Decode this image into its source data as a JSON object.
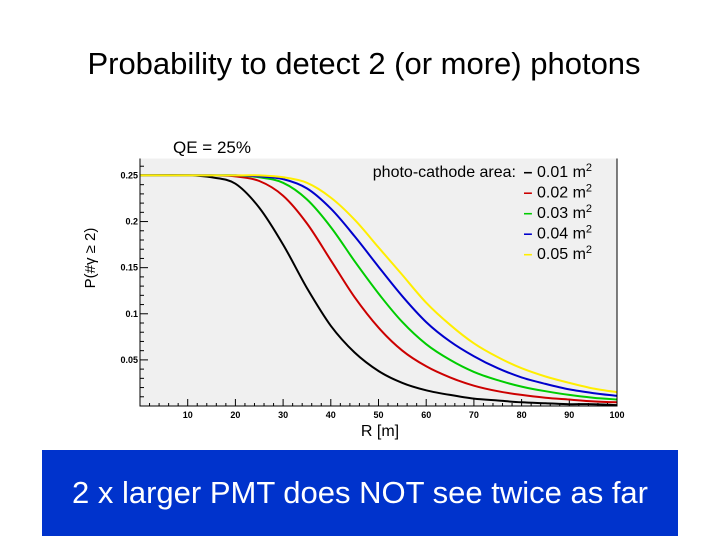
{
  "slide": {
    "title": "Probability to detect 2 (or more) photons",
    "banner": "2 x larger PMT does NOT see twice as far"
  },
  "chart_data": {
    "type": "line",
    "title": "QE = 25%",
    "xlabel": "R [m]",
    "ylabel": "P(#γ ≥ 2)",
    "xlim": [
      0,
      100
    ],
    "ylim": [
      0,
      0.27
    ],
    "x_ticks": [
      10,
      20,
      30,
      40,
      50,
      60,
      70,
      80,
      90,
      100
    ],
    "x_tick_labels": [
      "10",
      "20",
      "30",
      "40",
      "50",
      "60",
      "70",
      "80",
      "90",
      "100"
    ],
    "y_ticks": [
      0.05,
      0.1,
      0.15,
      0.2,
      0.25
    ],
    "y_tick_labels": [
      "0.05",
      "0.1",
      "0.15",
      "0.2",
      "0.25"
    ],
    "legend_title": "photo-cathode area:",
    "legend_unit": "m",
    "legend_unit_power": "2",
    "legend_marker": "–",
    "legend_position": "top-right",
    "x": [
      0,
      10,
      15,
      20,
      25,
      30,
      35,
      40,
      45,
      50,
      55,
      60,
      65,
      70,
      75,
      80,
      85,
      90,
      95,
      100
    ],
    "series": [
      {
        "name": "0.01",
        "color": "#000000",
        "values": [
          0.25,
          0.25,
          0.248,
          0.241,
          0.215,
          0.175,
          0.128,
          0.087,
          0.058,
          0.038,
          0.025,
          0.017,
          0.012,
          0.008,
          0.006,
          0.004,
          0.003,
          0.002,
          0.002,
          0.001
        ]
      },
      {
        "name": "0.02",
        "color": "#cc0000",
        "values": [
          0.25,
          0.25,
          0.25,
          0.249,
          0.244,
          0.228,
          0.198,
          0.158,
          0.118,
          0.085,
          0.06,
          0.043,
          0.031,
          0.022,
          0.016,
          0.012,
          0.009,
          0.007,
          0.005,
          0.004
        ]
      },
      {
        "name": "0.03",
        "color": "#00cc00",
        "values": [
          0.25,
          0.25,
          0.25,
          0.25,
          0.248,
          0.242,
          0.224,
          0.194,
          0.157,
          0.122,
          0.091,
          0.067,
          0.05,
          0.037,
          0.028,
          0.021,
          0.016,
          0.012,
          0.009,
          0.007
        ]
      },
      {
        "name": "0.04",
        "color": "#0000cc",
        "values": [
          0.25,
          0.25,
          0.25,
          0.25,
          0.249,
          0.246,
          0.236,
          0.214,
          0.184,
          0.151,
          0.119,
          0.091,
          0.07,
          0.054,
          0.041,
          0.031,
          0.024,
          0.018,
          0.014,
          0.011
        ]
      },
      {
        "name": "0.05",
        "color": "#ffee00",
        "values": [
          0.25,
          0.25,
          0.25,
          0.25,
          0.25,
          0.248,
          0.242,
          0.226,
          0.202,
          0.172,
          0.142,
          0.112,
          0.088,
          0.068,
          0.053,
          0.041,
          0.032,
          0.025,
          0.019,
          0.015
        ]
      }
    ]
  }
}
